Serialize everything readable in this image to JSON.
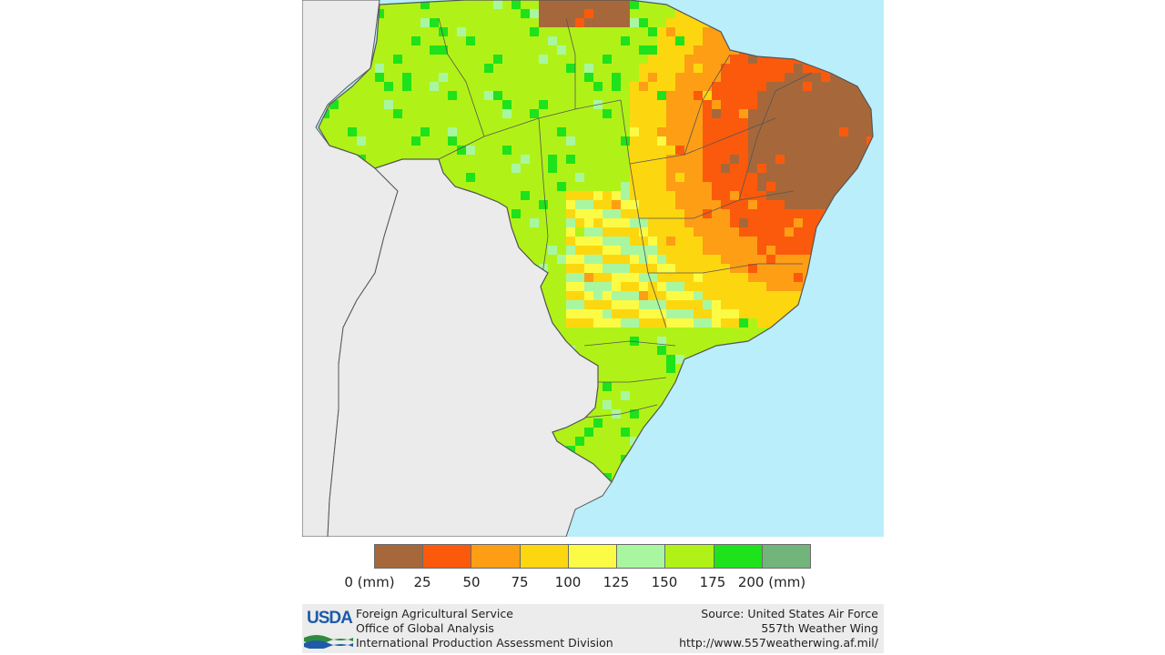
{
  "map": {
    "region": "Brazil",
    "variable": "precipitation",
    "unit": "mm",
    "colors": {
      "ocean": "#b9eefa",
      "neighbor_land": "#ebebeb",
      "borders": "#555555",
      "no_data": "#ffffff"
    }
  },
  "legend": {
    "bins": [
      {
        "color": "#a6683a",
        "range": "0-25"
      },
      {
        "color": "#fb5a0c",
        "range": "25-50"
      },
      {
        "color": "#fd9e15",
        "range": "50-75"
      },
      {
        "color": "#fcd70f",
        "range": "75-100"
      },
      {
        "color": "#fbfb46",
        "range": "100-125"
      },
      {
        "color": "#a8f7a0",
        "range": "125-150"
      },
      {
        "color": "#b0f217",
        "range": "150-175"
      },
      {
        "color": "#1ee21b",
        "range": "175-200"
      },
      {
        "color": "#72b57a",
        "range": "200+"
      }
    ],
    "labels": [
      "0 (mm)",
      "25",
      "50",
      "75",
      "100",
      "125",
      "150",
      "175",
      "200 (mm)"
    ]
  },
  "footer": {
    "logo_text": "USDA",
    "agency_line1": "Foreign Agricultural Service",
    "agency_line2": "Office of Global Analysis",
    "agency_line3": "International Production Assessment Division",
    "source_line1": "Source: United States Air Force",
    "source_line2": "557th Weather Wing",
    "source_line3": "http://www.557weatherwing.af.mil/"
  }
}
